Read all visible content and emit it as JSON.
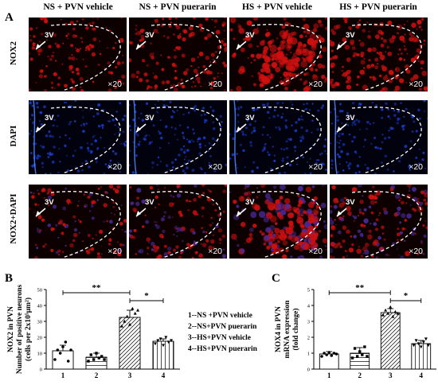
{
  "panel_letters": {
    "a": "A",
    "b": "B",
    "c": "C"
  },
  "column_headers": [
    "NS + PVN vehicle",
    "NS + PVN puerarin",
    "HS + PVN vehicle",
    "HS + PVN puerarin"
  ],
  "row_labels": [
    "NOX2",
    "DAPI",
    "NOX2+DAPI"
  ],
  "image_marks": {
    "ventricle": "3V",
    "magnification": "×20"
  },
  "colors": {
    "nox2_stain": "#d01010",
    "dapi_stain": "#1a3cc8",
    "background": "#0a0000",
    "bar_outline": "#000000"
  },
  "legend": [
    "1--NS +PVN vehicle",
    "2--NS+PVN puerarin",
    "3--HS+PVN vehicle",
    "4--HS+PVN puerarin"
  ],
  "chart_data": [
    {
      "type": "bar",
      "panel": "B",
      "categories": [
        "1",
        "2",
        "3",
        "4"
      ],
      "values": [
        11.5,
        7.5,
        32.5,
        17.5
      ],
      "errors": [
        3.5,
        2.5,
        4.5,
        1.5
      ],
      "points": [
        [
          6,
          12,
          10,
          14,
          17,
          5,
          12
        ],
        [
          5,
          9,
          6,
          10,
          7,
          8,
          6
        ],
        [
          27,
          30,
          33,
          28,
          38,
          35,
          37
        ],
        [
          16,
          18,
          19,
          15,
          20,
          17,
          18
        ]
      ],
      "bar_fills": [
        "plain",
        "horizontal",
        "diagonal",
        "vertical"
      ],
      "ylabel_lines": [
        "NOX2 in PVN",
        "Number of positive neurons",
        "(cells per 2x10⁵μm²)"
      ],
      "ylim": [
        0,
        50
      ],
      "yticks": [
        0,
        10,
        20,
        30,
        40,
        50
      ],
      "significance": [
        {
          "from": "1",
          "to": "3",
          "label": "**"
        },
        {
          "from": "3",
          "to": "4",
          "label": "*"
        }
      ]
    },
    {
      "type": "bar",
      "panel": "C",
      "categories": [
        "1",
        "2",
        "3",
        "4"
      ],
      "values": [
        0.95,
        1.0,
        3.55,
        1.6
      ],
      "errors": [
        0.15,
        0.35,
        0.25,
        0.2
      ],
      "points": [
        [
          0.8,
          1.0,
          0.9,
          1.05,
          0.85,
          1.0,
          0.95
        ],
        [
          0.7,
          1.3,
          0.8,
          1.1,
          0.9,
          1.4,
          0.8
        ],
        [
          3.4,
          3.7,
          3.5,
          3.9,
          3.3,
          3.6,
          3.5
        ],
        [
          1.5,
          1.8,
          1.6,
          1.4,
          1.7,
          1.9,
          1.5
        ]
      ],
      "bar_fills": [
        "plain",
        "horizontal",
        "diagonal",
        "vertical"
      ],
      "ylabel_lines": [
        "NOX4 in PVN",
        "mRNA expression",
        "(fold change)"
      ],
      "ylim": [
        0,
        5
      ],
      "yticks": [
        0,
        1,
        2,
        3,
        4,
        5
      ],
      "significance": [
        {
          "from": "1",
          "to": "3",
          "label": "**"
        },
        {
          "from": "3",
          "to": "4",
          "label": "*"
        }
      ]
    }
  ]
}
